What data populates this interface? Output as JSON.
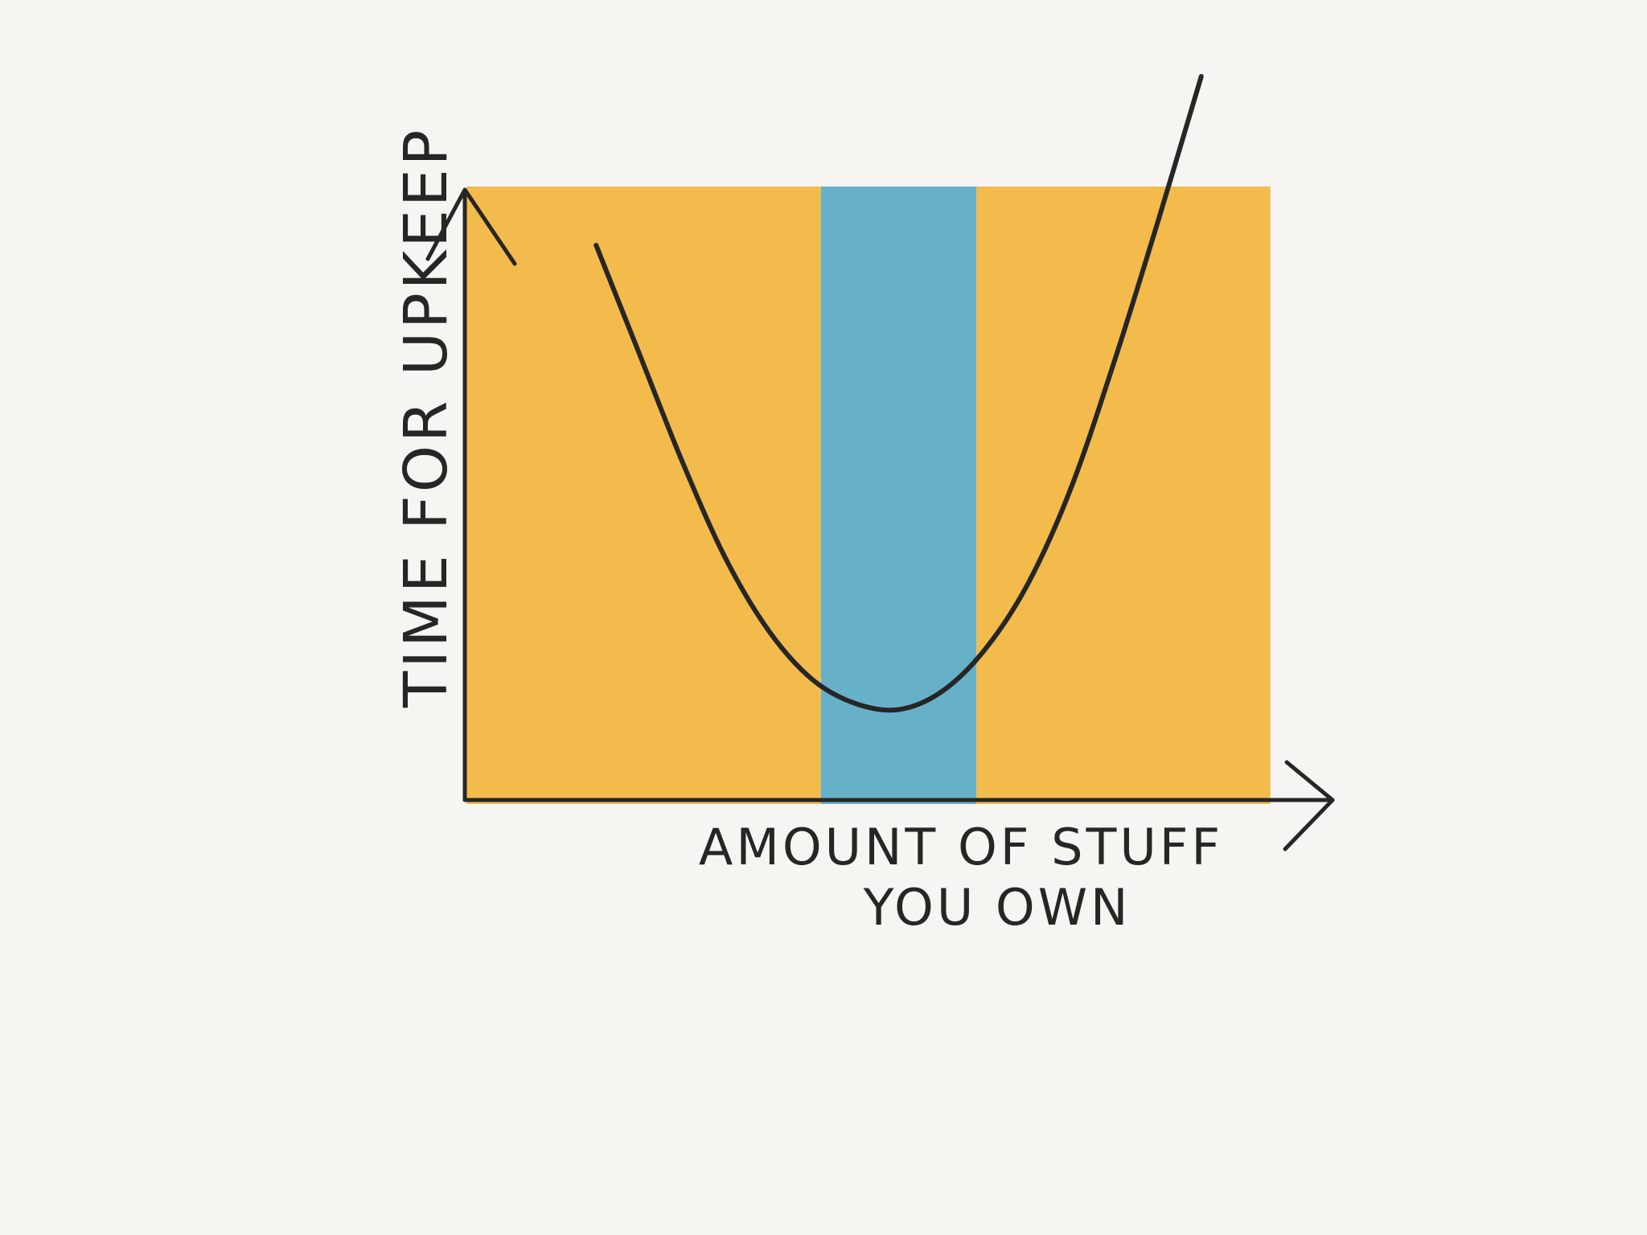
{
  "colors": {
    "background": "#f6f5f2",
    "outer_band": "#f2bb4c",
    "middle_band": "#67b1c8",
    "curve": "#262626",
    "axis": "#262626"
  },
  "chart_data": {
    "type": "line",
    "title": "",
    "xlabel_lines": [
      "AMOUNT OF STUFF",
      "YOU OWN"
    ],
    "ylabel": "TIME FOR UPKEEP",
    "xlim": [
      0,
      10
    ],
    "ylim": [
      0,
      10
    ],
    "grid": false,
    "legend": "none",
    "axis_ticks": false,
    "bands": [
      {
        "x_start": 0,
        "x_end": 4.1,
        "color": "#f2bb4c"
      },
      {
        "x_start": 4.1,
        "x_end": 5.9,
        "color": "#67b1c8"
      },
      {
        "x_start": 5.9,
        "x_end": 9.3,
        "color": "#f2bb4c"
      }
    ],
    "series": [
      {
        "x": [
          1.5,
          2.0,
          2.5,
          3.0,
          3.5,
          4.0,
          4.5,
          5.0,
          5.5,
          6.0,
          6.5,
          7.0,
          7.5,
          8.0,
          8.5
        ],
        "y": [
          9.2,
          7.4,
          5.6,
          4.0,
          2.8,
          2.0,
          1.6,
          1.5,
          1.8,
          2.5,
          3.6,
          5.2,
          7.3,
          9.6,
          12.0
        ]
      }
    ]
  }
}
